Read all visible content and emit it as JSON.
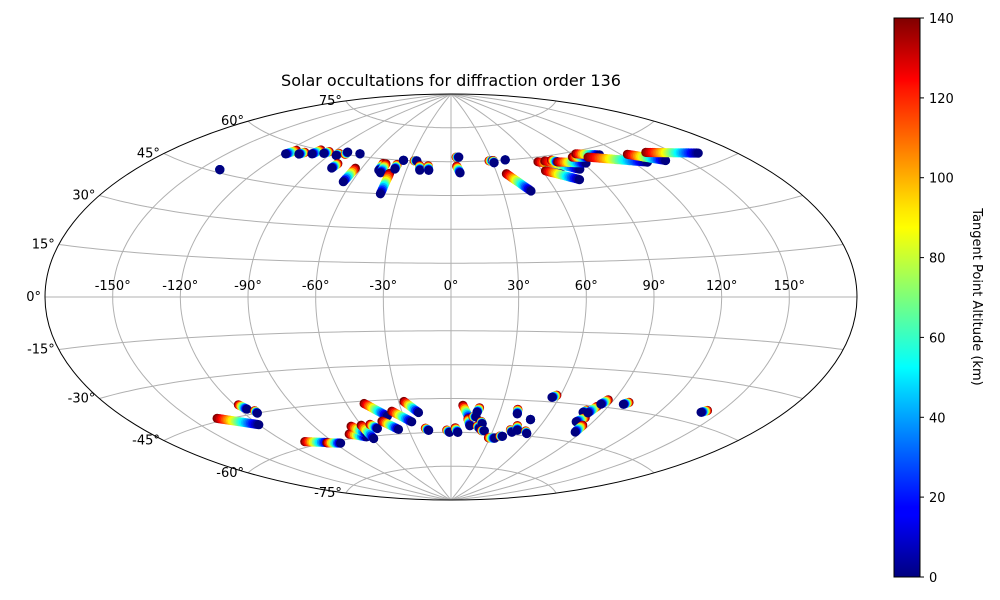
{
  "chart_data": {
    "type": "scatter",
    "projection": "aitoff",
    "title": "Solar occultations for diffraction order 136",
    "lon_tick_labels": [
      "-150°",
      "-120°",
      "-90°",
      "-60°",
      "-30°",
      "0°",
      "30°",
      "60°",
      "90°",
      "120°",
      "150°"
    ],
    "lon_ticks": [
      -150,
      -120,
      -90,
      -60,
      -30,
      0,
      30,
      60,
      90,
      120,
      150
    ],
    "lat_tick_labels": [
      "-75°",
      "-60°",
      "-45°",
      "-30°",
      "-15°",
      "0°",
      "15°",
      "30°",
      "45°",
      "60°",
      "75°"
    ],
    "lat_ticks": [
      -75,
      -60,
      -45,
      -30,
      -15,
      0,
      15,
      30,
      45,
      60,
      75
    ],
    "grid": true,
    "colorbar": {
      "label": "Tangent Point Altitude (km)",
      "colormap": "jet",
      "range": [
        0,
        140
      ],
      "tick_labels": [
        "0",
        "20",
        "40",
        "60",
        "80",
        "100",
        "120",
        "140"
      ],
      "ticks": [
        0,
        20,
        40,
        60,
        80,
        100,
        120,
        140
      ]
    },
    "tracks": [
      {
        "from": [
          -140,
          46
        ],
        "to": [
          -140,
          46
        ]
      },
      {
        "from": [
          -115,
          58
        ],
        "to": [
          -118,
          56
        ]
      },
      {
        "from": [
          -108,
          58
        ],
        "to": [
          -110,
          57
        ]
      },
      {
        "from": [
          -100,
          60
        ],
        "to": [
          -102,
          58
        ]
      },
      {
        "from": [
          -93,
          60
        ],
        "to": [
          -95,
          59
        ]
      },
      {
        "from": [
          -85,
          60
        ],
        "to": [
          -85,
          59
        ]
      },
      {
        "from": [
          -80,
          60
        ],
        "to": [
          -80,
          61
        ]
      },
      {
        "from": [
          -78,
          56
        ],
        "to": [
          -79,
          54
        ]
      },
      {
        "from": [
          -70,
          61
        ],
        "to": [
          -70,
          61
        ]
      },
      {
        "from": [
          -64,
          55
        ],
        "to": [
          -65,
          49
        ]
      },
      {
        "from": [
          -48,
          58
        ],
        "to": [
          -48,
          55
        ]
      },
      {
        "from": [
          -46,
          58
        ],
        "to": [
          -46,
          54
        ]
      },
      {
        "from": [
          -40,
          54
        ],
        "to": [
          -40,
          45
        ]
      },
      {
        "from": [
          -38,
          58
        ],
        "to": [
          -38,
          56
        ]
      },
      {
        "from": [
          -35,
          60
        ],
        "to": [
          -35,
          60
        ]
      },
      {
        "from": [
          -27,
          60
        ],
        "to": [
          -25,
          60
        ]
      },
      {
        "from": [
          -22,
          58
        ],
        "to": [
          -21,
          56
        ]
      },
      {
        "from": [
          -16,
          58
        ],
        "to": [
          -15,
          56
        ]
      },
      {
        "from": [
          4,
          62
        ],
        "to": [
          6,
          62
        ]
      },
      {
        "from": [
          4,
          58
        ],
        "to": [
          6,
          55
        ]
      },
      {
        "from": [
          28,
          60
        ],
        "to": [
          31,
          60
        ]
      },
      {
        "from": [
          31,
          60
        ],
        "to": [
          31,
          59
        ]
      },
      {
        "from": [
          40,
          60
        ],
        "to": [
          40,
          60
        ]
      },
      {
        "from": [
          36,
          54
        ],
        "to": [
          46,
          46
        ]
      },
      {
        "from": [
          62,
          58
        ],
        "to": [
          76,
          55
        ]
      },
      {
        "from": [
          62,
          54
        ],
        "to": [
          78,
          49
        ]
      },
      {
        "from": [
          67,
          58
        ],
        "to": [
          84,
          53
        ]
      },
      {
        "from": [
          72,
          58
        ],
        "to": [
          75,
          57
        ]
      },
      {
        "from": [
          75,
          57
        ],
        "to": [
          92,
          55
        ]
      },
      {
        "from": [
          88,
          58
        ],
        "to": [
          98,
          57
        ]
      },
      {
        "from": [
          93,
          59
        ],
        "to": [
          107,
          57
        ]
      },
      {
        "from": [
          98,
          57
        ],
        "to": [
          128,
          51
        ]
      },
      {
        "from": [
          124,
          55
        ],
        "to": [
          139,
          50
        ]
      },
      {
        "from": [
          136,
          54
        ],
        "to": [
          162,
          49
        ]
      },
      {
        "from": [
          -137,
          -44
        ],
        "to": [
          -120,
          -49
        ]
      },
      {
        "from": [
          -118,
          -41
        ],
        "to": [
          -116,
          -43
        ]
      },
      {
        "from": [
          -113,
          -44
        ],
        "to": [
          -113,
          -45
        ]
      },
      {
        "from": [
          -108,
          -58
        ],
        "to": [
          -94,
          -60
        ]
      },
      {
        "from": [
          -95,
          -60
        ],
        "to": [
          -86,
          -61
        ]
      },
      {
        "from": [
          -73,
          -58
        ],
        "to": [
          -63,
          -60
        ]
      },
      {
        "from": [
          -67,
          -55
        ],
        "to": [
          -61,
          -59
        ]
      },
      {
        "from": [
          -60,
          -55
        ],
        "to": [
          -59,
          -61
        ]
      },
      {
        "from": [
          -54,
          -55
        ],
        "to": [
          -51,
          -57
        ]
      },
      {
        "from": [
          -50,
          -46
        ],
        "to": [
          -40,
          -52
        ]
      },
      {
        "from": [
          -45,
          -54
        ],
        "to": [
          -37,
          -58
        ]
      },
      {
        "from": [
          -36,
          -50
        ],
        "to": [
          -26,
          -55
        ]
      },
      {
        "from": [
          -27,
          -46
        ],
        "to": [
          -20,
          -51
        ]
      },
      {
        "from": [
          -18,
          -58
        ],
        "to": [
          -16,
          -59
        ]
      },
      {
        "from": [
          -3,
          -59
        ],
        "to": [
          -1,
          -60
        ]
      },
      {
        "from": [
          3,
          -58
        ],
        "to": [
          5,
          -60
        ]
      },
      {
        "from": [
          7,
          -48
        ],
        "to": [
          12,
          -54
        ]
      },
      {
        "from": [
          11,
          -54
        ],
        "to": [
          13,
          -57
        ]
      },
      {
        "from": [
          14,
          -53
        ],
        "to": [
          16,
          -53
        ]
      },
      {
        "from": [
          17,
          -49
        ],
        "to": [
          16,
          -51
        ]
      },
      {
        "from": [
          18,
          -57
        ],
        "to": [
          20,
          -58
        ]
      },
      {
        "from": [
          20,
          -55
        ],
        "to": [
          21,
          -56
        ]
      },
      {
        "from": [
          22,
          -59
        ],
        "to": [
          24,
          -59
        ]
      },
      {
        "from": [
          29,
          -62
        ],
        "to": [
          34,
          -62
        ]
      },
      {
        "from": [
          37,
          -61
        ],
        "to": [
          39,
          -61
        ]
      },
      {
        "from": [
          42,
          -58
        ],
        "to": [
          44,
          -59
        ]
      },
      {
        "from": [
          45,
          -56
        ],
        "to": [
          47,
          -58
        ]
      },
      {
        "from": [
          40,
          -49
        ],
        "to": [
          41,
          -51
        ]
      },
      {
        "from": [
          51,
          -53
        ],
        "to": [
          51,
          -53
        ]
      },
      {
        "from": [
          53,
          -58
        ],
        "to": [
          55,
          -59
        ]
      },
      {
        "from": [
          58,
          -42
        ],
        "to": [
          56,
          -43
        ]
      },
      {
        "from": [
          80,
          -47
        ],
        "to": [
          79,
          -48
        ]
      },
      {
        "from": [
          83,
          -50
        ],
        "to": [
          80,
          -52
        ]
      },
      {
        "from": [
          84,
          -45
        ],
        "to": [
          82,
          -48
        ]
      },
      {
        "from": [
          86,
          -53
        ],
        "to": [
          86,
          -56
        ]
      },
      {
        "from": [
          87,
          -42
        ],
        "to": [
          85,
          -44
        ]
      },
      {
        "from": [
          99,
          -42
        ],
        "to": [
          97,
          -43
        ]
      },
      {
        "from": [
          143,
          -40
        ],
        "to": [
          141,
          -41
        ]
      }
    ]
  }
}
